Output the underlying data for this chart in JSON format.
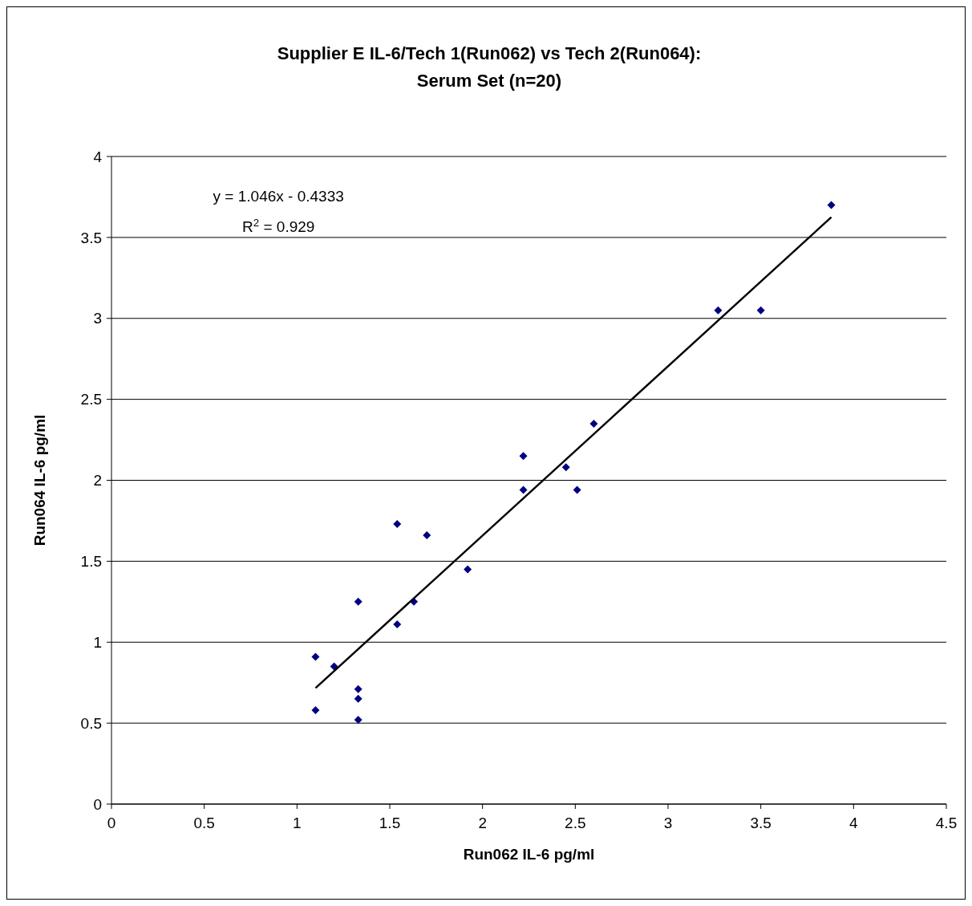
{
  "chart_data": {
    "type": "scatter",
    "title": "Supplier E IL-6/Tech 1(Run062) vs Tech 2(Run064):",
    "subtitle": "Serum Set (n=20)",
    "xlabel": "Run062 IL-6 pg/ml",
    "ylabel": "Run064 IL-6 pg/ml",
    "xlim": [
      0,
      4.5
    ],
    "xticks": [
      0,
      0.5,
      1,
      1.5,
      2,
      2.5,
      3,
      3.5,
      4,
      4.5
    ],
    "ylim": [
      0,
      4
    ],
    "yticks": [
      0,
      0.5,
      1,
      1.5,
      2,
      2.5,
      3,
      3.5,
      4
    ],
    "grid": "y",
    "annotations": [
      "y = 1.046x - 0.4333",
      "R$^{2}$ = 0.929"
    ],
    "series": [
      {
        "type": "scatter",
        "color": "#000080",
        "marker": "diamond",
        "x": [
          1.1,
          1.1,
          1.2,
          1.33,
          1.33,
          1.33,
          1.33,
          1.54,
          1.54,
          1.63,
          1.7,
          1.92,
          2.22,
          2.22,
          2.45,
          2.51,
          2.6,
          3.27,
          3.5,
          3.88
        ],
        "values": [
          0.91,
          0.58,
          0.85,
          1.25,
          0.71,
          0.65,
          0.52,
          1.73,
          1.11,
          1.25,
          1.66,
          1.45,
          2.15,
          1.94,
          2.08,
          1.94,
          2.35,
          3.05,
          3.05,
          3.7
        ]
      },
      {
        "type": "line",
        "color": "#000000",
        "marker": "none",
        "line_style": "solid",
        "x": [
          1.1,
          3.88
        ],
        "values": [
          0.717,
          3.625
        ]
      }
    ]
  }
}
